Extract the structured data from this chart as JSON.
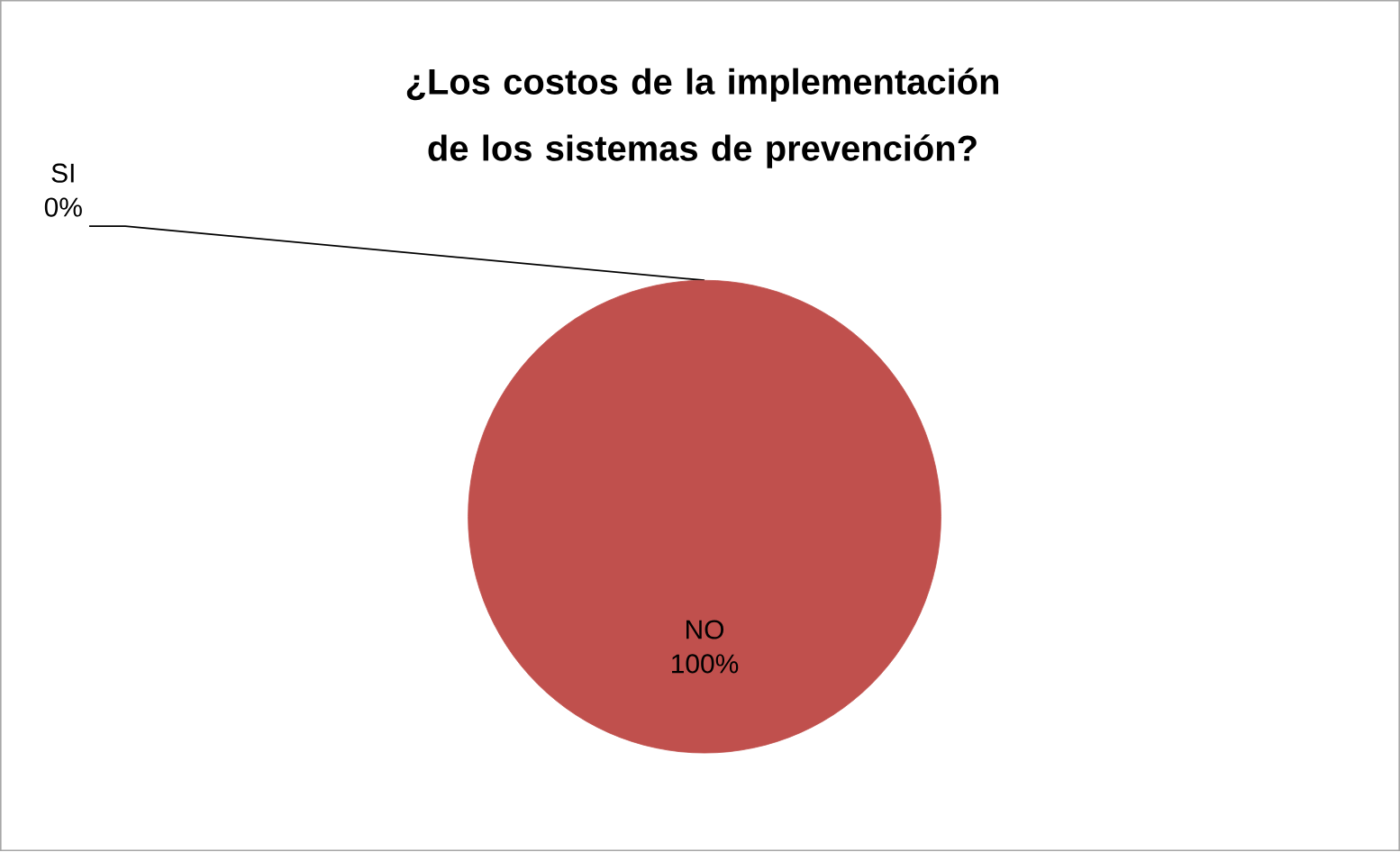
{
  "chart_data": {
    "type": "pie",
    "title": "¿Los costos de la implementación de los sistemas de prevención?",
    "categories": [
      "SI",
      "NO"
    ],
    "values": [
      0,
      100
    ],
    "value_labels": [
      "0%",
      "100%"
    ],
    "colors": [
      "#4f81bd",
      "#c0504d"
    ]
  }
}
